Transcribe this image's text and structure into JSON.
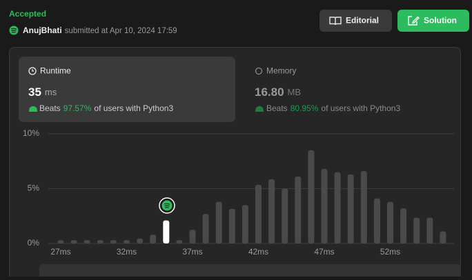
{
  "header": {
    "status": "Accepted",
    "user": "AnujBhati",
    "submitted": "submitted at Apr 10, 2024 17:59"
  },
  "buttons": [
    "Editorial",
    "Solution"
  ],
  "runtime": {
    "label": "Runtime",
    "value": "35",
    "unit": "ms",
    "beats": "Beats",
    "percent": "97.57%",
    "suffix": "of users with Python3"
  },
  "memory": {
    "label": "Memory",
    "value": "16.80",
    "unit": "MB",
    "beats": "Beats",
    "percent": "80.95%",
    "suffix": "of users with Python3"
  },
  "chart_data": {
    "type": "bar",
    "categories": [
      "27ms",
      null,
      null,
      null,
      null,
      "32ms",
      null,
      null,
      null,
      null,
      "37ms",
      null,
      null,
      null,
      null,
      "42ms",
      null,
      null,
      null,
      null,
      "47ms",
      null,
      null,
      null,
      null,
      "52ms",
      null,
      null,
      null,
      null
    ],
    "values": [
      0.3,
      0.3,
      0.3,
      0.3,
      0.3,
      0.3,
      0.45,
      0.8,
      2.1,
      0.3,
      1.25,
      2.7,
      3.8,
      3.15,
      3.5,
      5.35,
      5.85,
      5.0,
      6.1,
      8.5,
      6.8,
      6.5,
      6.3,
      6.6,
      4.1,
      3.8,
      3.2,
      2.35,
      2.35,
      1.1
    ],
    "colors": [
      "#4a4a4a",
      "#4a4a4a",
      "#4a4a4a",
      "#4a4a4a",
      "#4a4a4a",
      "#4a4a4a",
      "#4a4a4a",
      "#4a4a4a",
      "#ffffff",
      "#4a4a4a",
      "#4a4a4a",
      "#4a4a4a",
      "#4a4a4a",
      "#4a4a4a",
      "#4a4a4a",
      "#4a4a4a",
      "#4a4a4a",
      "#4a4a4a",
      "#4a4a4a",
      "#4a4a4a",
      "#4a4a4a",
      "#4a4a4a",
      "#4a4a4a",
      "#4a4a4a",
      "#4a4a4a",
      "#4a4a4a",
      "#4a4a4a",
      "#4a4a4a",
      "#4a4a4a",
      "#4a4a4a"
    ],
    "ylim": [
      0,
      10
    ],
    "yticks": [
      {
        "value": 0,
        "label": "0%"
      },
      {
        "value": 5,
        "label": "5%"
      },
      {
        "value": 10,
        "label": "10%"
      }
    ],
    "grid": true
  }
}
